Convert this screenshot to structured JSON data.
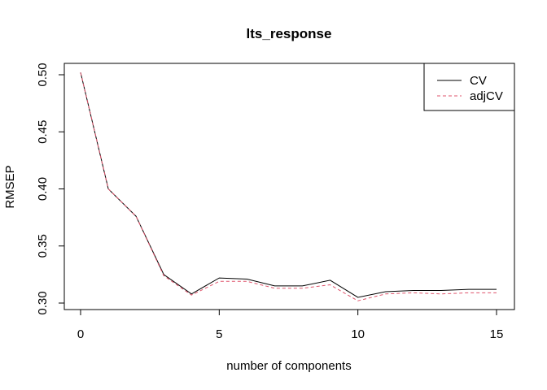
{
  "chart_data": {
    "type": "line",
    "title": "lts_response",
    "xlabel": "number of components",
    "ylabel": "RMSEP",
    "xlim": [
      0,
      15
    ],
    "ylim": [
      0.3,
      0.5
    ],
    "x_ticks": [
      "0",
      "5",
      "10",
      "15"
    ],
    "y_ticks": [
      "0.30",
      "0.35",
      "0.40",
      "0.45",
      "0.50"
    ],
    "legend_position": "top-right",
    "grid": false,
    "series": [
      {
        "name": "CV",
        "color": "#000000",
        "style": "solid",
        "x": [
          0,
          1,
          2,
          3,
          4,
          5,
          6,
          7,
          8,
          9,
          10,
          11,
          12,
          13,
          14,
          15
        ],
        "values": [
          0.502,
          0.4,
          0.376,
          0.325,
          0.308,
          0.322,
          0.321,
          0.315,
          0.315,
          0.32,
          0.305,
          0.31,
          0.311,
          0.311,
          0.312,
          0.312
        ]
      },
      {
        "name": "adjCV",
        "color": "#df536b",
        "style": "dashed",
        "x": [
          0,
          1,
          2,
          3,
          4,
          5,
          6,
          7,
          8,
          9,
          10,
          11,
          12,
          13,
          14,
          15
        ],
        "values": [
          0.502,
          0.4,
          0.376,
          0.324,
          0.307,
          0.319,
          0.319,
          0.313,
          0.313,
          0.316,
          0.302,
          0.308,
          0.309,
          0.308,
          0.309,
          0.309
        ]
      }
    ]
  }
}
